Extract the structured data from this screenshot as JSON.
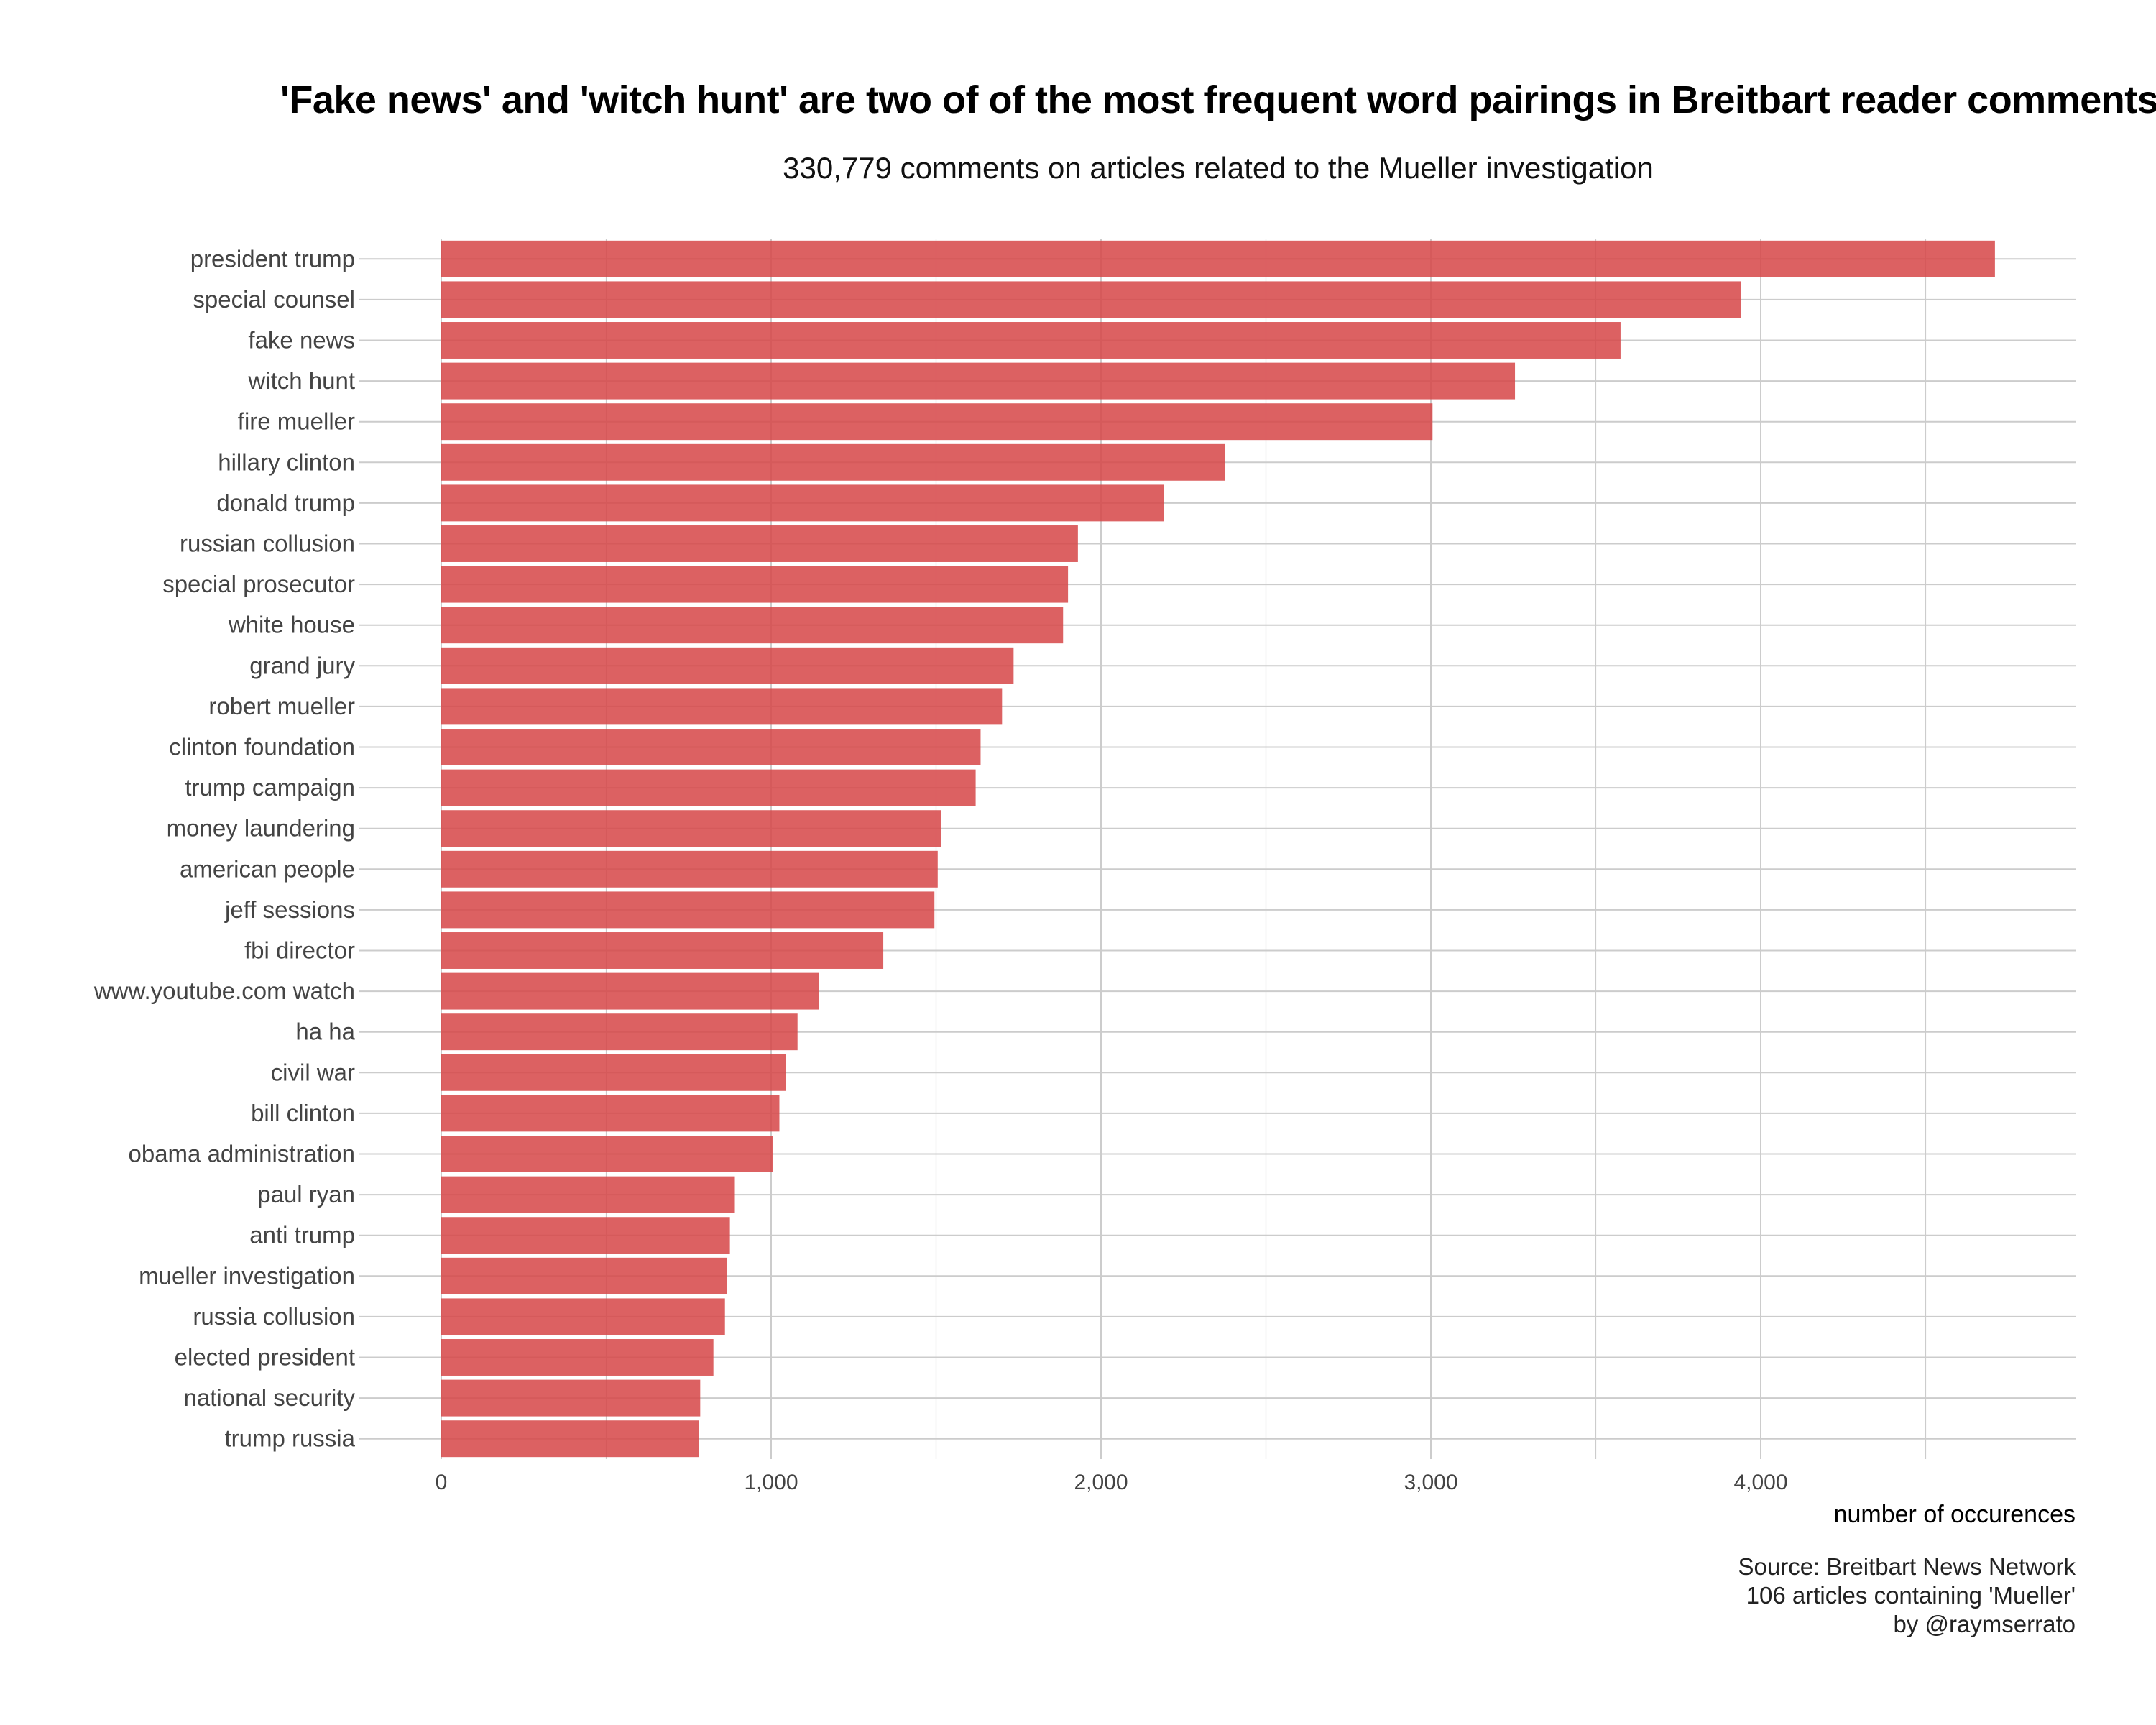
{
  "title": "'Fake news' and 'witch hunt' are two of of the most frequent word pairings in Breitbart reader comments",
  "subtitle": "330,779 comments on articles related to the Mueller investigation",
  "caption": {
    "line1": "Source: Breitbart News Network",
    "line2": "106 articles containing 'Mueller'",
    "line3": "by @raymserrato"
  },
  "colors": {
    "bar": "#d64546",
    "grid": "#cccccc",
    "background": "#ffffff"
  },
  "chart_data": {
    "type": "bar",
    "orientation": "horizontal",
    "categories": [
      "president trump",
      "special counsel",
      "fake news",
      "witch hunt",
      "fire mueller",
      "hillary clinton",
      "donald trump",
      "russian collusion",
      "special prosecutor",
      "white house",
      "grand jury",
      "robert mueller",
      "clinton foundation",
      "trump campaign",
      "money laundering",
      "american people",
      "jeff sessions",
      "fbi director",
      "www.youtube.com watch",
      "ha ha",
      "civil war",
      "bill clinton",
      "obama administration",
      "paul ryan",
      "anti trump",
      "mueller investigation",
      "russia collusion",
      "elected president",
      "national security",
      "trump russia"
    ],
    "values": [
      4710,
      3940,
      3575,
      3255,
      3005,
      2375,
      2190,
      1930,
      1900,
      1885,
      1735,
      1700,
      1635,
      1620,
      1515,
      1505,
      1495,
      1340,
      1145,
      1080,
      1045,
      1025,
      1005,
      890,
      875,
      865,
      860,
      825,
      785,
      780
    ],
    "xlabel": "number of occurences",
    "ylabel": "",
    "xlim": [
      0,
      4950
    ],
    "xticks": [
      0,
      1000,
      2000,
      3000,
      4000
    ],
    "xtick_labels": [
      "0",
      "1,000",
      "2,000",
      "3,000",
      "4,000"
    ],
    "grid": true
  }
}
